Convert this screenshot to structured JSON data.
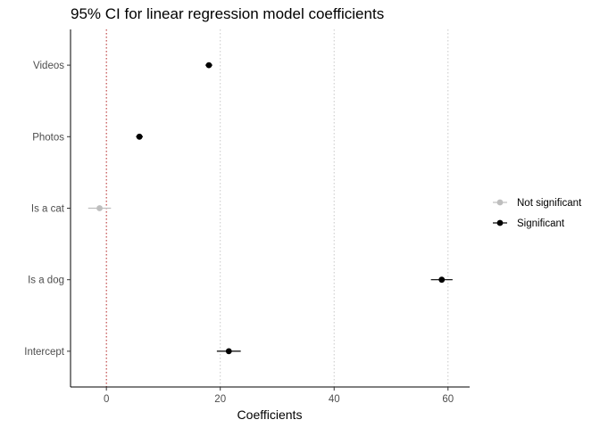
{
  "chart_data": {
    "type": "scatter",
    "title": "95% CI for linear regression model coefficients",
    "xlabel": "Coefficients",
    "ylabel": "",
    "xlim": [
      -6.3,
      63.8
    ],
    "x_ticks": [
      0,
      20,
      40,
      60
    ],
    "x_tick_labels": [
      "0",
      "20",
      "40",
      "60"
    ],
    "categories": [
      "Videos",
      "Photos",
      "Is a cat",
      "Is a dog",
      "Intercept"
    ],
    "points": [
      {
        "term": "Videos",
        "estimate": 18.0,
        "ci_low": 17.4,
        "ci_high": 18.6,
        "group": "Significant"
      },
      {
        "term": "Photos",
        "estimate": 5.8,
        "ci_low": 5.2,
        "ci_high": 6.4,
        "group": "Significant"
      },
      {
        "term": "Is a cat",
        "estimate": -1.2,
        "ci_low": -3.2,
        "ci_high": 0.8,
        "group": "Not significant"
      },
      {
        "term": "Is a dog",
        "estimate": 58.9,
        "ci_low": 57.0,
        "ci_high": 60.8,
        "group": "Significant"
      },
      {
        "term": "Intercept",
        "estimate": 21.5,
        "ci_low": 19.4,
        "ci_high": 23.6,
        "group": "Significant"
      }
    ],
    "reference_line": {
      "x": 0,
      "color": "#b22222",
      "style": "dotted"
    },
    "vertical_gridlines": [
      20,
      40,
      60
    ],
    "legend": {
      "placement": "right",
      "entries": [
        {
          "label": "Not significant",
          "color": "#bebebe"
        },
        {
          "label": "Significant",
          "color": "#000000"
        }
      ]
    },
    "grid": "dotted vertical gridlines at major x ticks"
  }
}
